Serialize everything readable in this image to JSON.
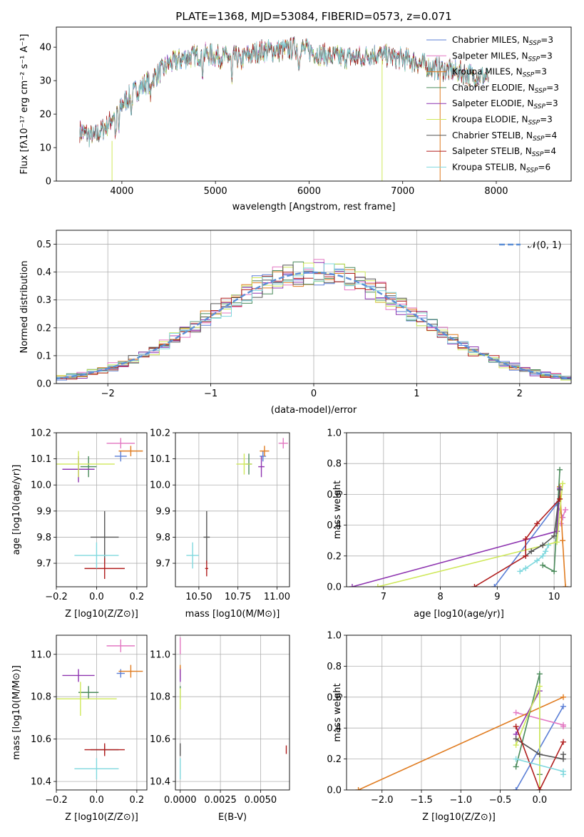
{
  "chart_data": [
    {
      "type": "line",
      "title": "PLATE=1368, MJD=53084, FIBERID=0573, z=0.071",
      "xlabel": "wavelength [Angstrom, rest frame]",
      "ylabel": "Flux [fλ10⁻¹⁷ erg cm⁻² s⁻¹ A⁻¹]",
      "xlim": [
        3300,
        8800
      ],
      "ylim": [
        0,
        46
      ],
      "xticks": [
        4000,
        5000,
        6000,
        7000,
        8000
      ],
      "yticks": [
        0,
        10,
        20,
        30,
        40
      ],
      "legend_position": "top-right",
      "continuum": {
        "x": [
          3550,
          3700,
          3850,
          4000,
          4150,
          4300,
          4500,
          4700,
          4900,
          5100,
          5300,
          5500,
          5700,
          5900,
          6100,
          6300,
          6500,
          6700,
          6900,
          7100,
          7300,
          7500,
          7700,
          7900
        ],
        "y": [
          15,
          13,
          17,
          23,
          27,
          30,
          35,
          37,
          38,
          37,
          37,
          39,
          39,
          40,
          38,
          37,
          37,
          38,
          37,
          36,
          34,
          33,
          32,
          31
        ]
      },
      "series": [
        {
          "name": "Chabrier MILES, N",
          "sub": "SSP",
          "suffix": "=3",
          "color": "#5b7fd6"
        },
        {
          "name": "Salpeter MILES, N",
          "sub": "SSP",
          "suffix": "=3",
          "color": "#e377c2"
        },
        {
          "name": "Kroupa MILES, N",
          "sub": "SSP",
          "suffix": "=3",
          "color": "#e07b1f"
        },
        {
          "name": "Chabrier ELODIE, N",
          "sub": "SSP",
          "suffix": "=3",
          "color": "#4a8a5a"
        },
        {
          "name": "Salpeter ELODIE, N",
          "sub": "SSP",
          "suffix": "=3",
          "color": "#8e35b0"
        },
        {
          "name": "Kroupa ELODIE, N",
          "sub": "SSP",
          "suffix": "=3",
          "color": "#cfe85a"
        },
        {
          "name": "Chabrier STELIB, N",
          "sub": "SSP",
          "suffix": "=4",
          "color": "#555555"
        },
        {
          "name": "Salpeter STELIB, N",
          "sub": "SSP",
          "suffix": "=4",
          "color": "#b01c1c"
        },
        {
          "name": "Kroupa STELIB, N",
          "sub": "SSP",
          "suffix": "=6",
          "color": "#7fd8de"
        }
      ]
    },
    {
      "type": "histogram",
      "xlabel": "(data-model)/error",
      "ylabel": "Normed distribution",
      "xlim": [
        -2.5,
        2.5
      ],
      "ylim": [
        0,
        0.55
      ],
      "xticks": [
        -2,
        -1,
        0,
        1,
        2
      ],
      "yticks": [
        0.0,
        0.1,
        0.2,
        0.3,
        0.4,
        0.5
      ],
      "bin_width": 0.1,
      "legend_label": "𝒩(0, 1)",
      "reference_curve": "gaussian mean 0 sigma 1",
      "reference_color": "#5b8ed6"
    },
    {
      "type": "scatter",
      "xlabel": "Z [log10(Z/Z⊙)]",
      "ylabel": "age  [log10(age/yr)]",
      "xlim": [
        -0.2,
        0.25
      ],
      "ylim": [
        9.61,
        10.2
      ],
      "xticks": [
        -0.2,
        0.0,
        0.2
      ],
      "yticks": [
        9.7,
        9.8,
        9.9,
        10.0,
        10.1,
        10.2
      ],
      "points": [
        {
          "x": 0.12,
          "y": 10.11,
          "xerr": 0.03,
          "yerr": 0.02,
          "color": "#5b7fd6"
        },
        {
          "x": 0.12,
          "y": 10.16,
          "xerr": 0.07,
          "yerr": 0.02,
          "color": "#e377c2"
        },
        {
          "x": 0.17,
          "y": 10.13,
          "xerr": 0.06,
          "yerr": 0.02,
          "color": "#e07b1f"
        },
        {
          "x": -0.04,
          "y": 10.07,
          "xerr": 0.04,
          "yerr": 0.04,
          "color": "#4a8a5a"
        },
        {
          "x": -0.09,
          "y": 10.06,
          "xerr": 0.08,
          "yerr": 0.05,
          "color": "#8e35b0"
        },
        {
          "x": -0.09,
          "y": 10.08,
          "xerr": 0.18,
          "yerr": 0.05,
          "color": "#cfe85a"
        },
        {
          "x": 0.04,
          "y": 9.8,
          "xerr": 0.07,
          "yerr": 0.1,
          "color": "#555555"
        },
        {
          "x": 0.04,
          "y": 9.68,
          "xerr": 0.1,
          "yerr": 0.04,
          "color": "#b01c1c"
        },
        {
          "x": 0.0,
          "y": 9.73,
          "xerr": 0.11,
          "yerr": 0.05,
          "color": "#7fd8de"
        }
      ]
    },
    {
      "type": "scatter",
      "xlabel": "mass [log10(M/M⊙)]",
      "ylabel": "",
      "xlim": [
        10.35,
        11.08
      ],
      "ylim": [
        9.61,
        10.2
      ],
      "xticks": [
        10.5,
        10.75,
        11.0
      ],
      "yticks": [
        9.7,
        9.8,
        9.9,
        10.0,
        10.1,
        10.2
      ],
      "points": [
        {
          "x": 10.91,
          "y": 10.11,
          "xerr": 0.02,
          "yerr": 0.02,
          "color": "#5b7fd6"
        },
        {
          "x": 11.04,
          "y": 10.16,
          "xerr": 0.03,
          "yerr": 0.02,
          "color": "#e377c2"
        },
        {
          "x": 10.92,
          "y": 10.13,
          "xerr": 0.03,
          "yerr": 0.02,
          "color": "#e07b1f"
        },
        {
          "x": 10.82,
          "y": 10.08,
          "xerr": 0.02,
          "yerr": 0.04,
          "color": "#4a8a5a"
        },
        {
          "x": 10.9,
          "y": 10.07,
          "xerr": 0.02,
          "yerr": 0.04,
          "color": "#8e35b0"
        },
        {
          "x": 10.79,
          "y": 10.08,
          "xerr": 0.05,
          "yerr": 0.04,
          "color": "#cfe85a"
        },
        {
          "x": 10.55,
          "y": 9.8,
          "xerr": 0.02,
          "yerr": 0.1,
          "color": "#555555"
        },
        {
          "x": 10.55,
          "y": 9.68,
          "xerr": 0.01,
          "yerr": 0.03,
          "color": "#b01c1c"
        },
        {
          "x": 10.46,
          "y": 9.73,
          "xerr": 0.04,
          "yerr": 0.05,
          "color": "#7fd8de"
        }
      ]
    },
    {
      "type": "line",
      "xlabel": "age  [log10(age/yr)]",
      "ylabel": "mass weight",
      "xlim": [
        6.35,
        10.3
      ],
      "ylim": [
        0,
        1.0
      ],
      "xticks": [
        7,
        8,
        9,
        10
      ],
      "yticks": [
        0.0,
        0.2,
        0.4,
        0.6,
        0.8,
        1.0
      ],
      "series": [
        {
          "color": "#5b7fd6",
          "x": [
            8.95,
            10.05,
            10.15
          ],
          "y": [
            0.0,
            0.54,
            0.45
          ]
        },
        {
          "color": "#e377c2",
          "x": [
            10.12,
            10.15,
            10.2
          ],
          "y": [
            0.41,
            0.45,
            0.5
          ]
        },
        {
          "color": "#e07b1f",
          "x": [
            10.1,
            10.15,
            10.2
          ],
          "y": [
            0.65,
            0.3,
            0.0
          ]
        },
        {
          "color": "#4a8a5a",
          "x": [
            9.8,
            10.0,
            10.1
          ],
          "y": [
            0.14,
            0.1,
            0.76
          ]
        },
        {
          "color": "#8e35b0",
          "x": [
            6.45,
            10.05,
            10.1
          ],
          "y": [
            0.0,
            0.36,
            0.64
          ]
        },
        {
          "color": "#cfe85a",
          "x": [
            6.9,
            10.05,
            10.15
          ],
          "y": [
            0.0,
            0.29,
            0.67
          ]
        },
        {
          "color": "#555555",
          "x": [
            9.5,
            9.6,
            9.8,
            10.0,
            10.1
          ],
          "y": [
            0.2,
            0.23,
            0.27,
            0.33,
            0.63
          ]
        },
        {
          "color": "#b01c1c",
          "x": [
            8.6,
            9.5,
            9.5,
            9.7,
            10.1
          ],
          "y": [
            0.0,
            0.2,
            0.31,
            0.41,
            0.57
          ]
        },
        {
          "color": "#7fd8de",
          "x": [
            9.4,
            9.5,
            9.7,
            9.8,
            9.85,
            9.9
          ],
          "y": [
            0.1,
            0.12,
            0.17,
            0.2,
            0.23,
            0.27
          ]
        }
      ]
    },
    {
      "type": "scatter",
      "xlabel": "Z [log10(Z/Z⊙)]",
      "ylabel": "mass [log10(M/M⊙)]",
      "xlim": [
        -0.2,
        0.25
      ],
      "ylim": [
        10.36,
        11.09
      ],
      "xticks": [
        -0.2,
        0.0,
        0.2
      ],
      "yticks": [
        10.4,
        10.6,
        10.8,
        11.0
      ],
      "points": [
        {
          "x": 0.12,
          "y": 10.91,
          "xerr": 0.02,
          "yerr": 0.02,
          "color": "#5b7fd6"
        },
        {
          "x": 0.12,
          "y": 11.04,
          "xerr": 0.07,
          "yerr": 0.03,
          "color": "#e377c2"
        },
        {
          "x": 0.17,
          "y": 10.92,
          "xerr": 0.06,
          "yerr": 0.03,
          "color": "#e07b1f"
        },
        {
          "x": -0.04,
          "y": 10.82,
          "xerr": 0.05,
          "yerr": 0.03,
          "color": "#4a8a5a"
        },
        {
          "x": -0.09,
          "y": 10.9,
          "xerr": 0.08,
          "yerr": 0.03,
          "color": "#8e35b0"
        },
        {
          "x": -0.08,
          "y": 10.79,
          "xerr": 0.18,
          "yerr": 0.08,
          "color": "#cfe85a"
        },
        {
          "x": 0.04,
          "y": 10.55,
          "xerr": 0.07,
          "yerr": 0.02,
          "color": "#555555"
        },
        {
          "x": 0.04,
          "y": 10.55,
          "xerr": 0.1,
          "yerr": 0.03,
          "color": "#b01c1c"
        },
        {
          "x": 0.0,
          "y": 10.46,
          "xerr": 0.11,
          "yerr": 0.05,
          "color": "#7fd8de"
        }
      ]
    },
    {
      "type": "scatter",
      "xlabel": "E(B-V)",
      "ylabel": "",
      "xlim": [
        -0.0003,
        0.0068
      ],
      "ylim": [
        10.36,
        11.09
      ],
      "xticks": [
        0.0,
        0.0025,
        0.005
      ],
      "xtick_labels": [
        "0.0000",
        "0.0025",
        "0.0050"
      ],
      "yticks": [
        10.4,
        10.6,
        10.8,
        11.0
      ],
      "points": [
        {
          "x": 0.0,
          "y": 10.91,
          "xerr": 0,
          "yerr": 0.03,
          "color": "#5b7fd6"
        },
        {
          "x": 0.0,
          "y": 11.04,
          "xerr": 0,
          "yerr": 0.04,
          "color": "#e377c2"
        },
        {
          "x": 0.0,
          "y": 10.92,
          "xerr": 0,
          "yerr": 0.03,
          "color": "#e07b1f"
        },
        {
          "x": 0.0,
          "y": 10.82,
          "xerr": 0,
          "yerr": 0.03,
          "color": "#4a8a5a"
        },
        {
          "x": 0.0,
          "y": 10.9,
          "xerr": 0,
          "yerr": 0.03,
          "color": "#8e35b0"
        },
        {
          "x": 0.0,
          "y": 10.79,
          "xerr": 0,
          "yerr": 0.05,
          "color": "#cfe85a"
        },
        {
          "x": 0.0,
          "y": 10.55,
          "xerr": 0,
          "yerr": 0.03,
          "color": "#555555"
        },
        {
          "x": 0.0066,
          "y": 10.55,
          "xerr": 0,
          "yerr": 0.02,
          "color": "#b01c1c"
        },
        {
          "x": 0.0,
          "y": 10.46,
          "xerr": 0,
          "yerr": 0.05,
          "color": "#7fd8de"
        }
      ]
    },
    {
      "type": "line",
      "xlabel": "Z [log10(Z/Z⊙)]",
      "ylabel": "mass weight",
      "xlim": [
        -2.45,
        0.4
      ],
      "ylim": [
        0,
        1.0
      ],
      "xticks": [
        -2.0,
        -1.5,
        -1.0,
        -0.5,
        0.0
      ],
      "yticks": [
        0.0,
        0.2,
        0.4,
        0.6,
        0.8,
        1.0
      ],
      "series": [
        {
          "color": "#5b7fd6",
          "x": [
            -0.3,
            0.3
          ],
          "y": [
            0.0,
            0.54
          ]
        },
        {
          "color": "#e377c2",
          "x": [
            -0.3,
            0.3,
            0.3
          ],
          "y": [
            0.5,
            0.42,
            0.41
          ]
        },
        {
          "color": "#e07b1f",
          "x": [
            -2.3,
            0.3
          ],
          "y": [
            0.0,
            0.6
          ]
        },
        {
          "color": "#4a8a5a",
          "x": [
            -0.3,
            0.0,
            0.0
          ],
          "y": [
            0.15,
            0.75,
            0.1
          ]
        },
        {
          "color": "#8e35b0",
          "x": [
            -0.3,
            0.0
          ],
          "y": [
            0.36,
            0.64
          ]
        },
        {
          "color": "#cfe85a",
          "x": [
            -0.3,
            0.0,
            0.0
          ],
          "y": [
            0.29,
            0.67,
            0.0
          ]
        },
        {
          "color": "#555555",
          "x": [
            -0.3,
            0.0,
            0.3,
            0.3
          ],
          "y": [
            0.33,
            0.23,
            0.2,
            0.23
          ]
        },
        {
          "color": "#b01c1c",
          "x": [
            -0.3,
            0.0,
            0.3
          ],
          "y": [
            0.41,
            0.0,
            0.31
          ]
        },
        {
          "color": "#7fd8de",
          "x": [
            -0.3,
            0.3,
            0.3
          ],
          "y": [
            0.2,
            0.12,
            0.1
          ]
        }
      ]
    }
  ]
}
